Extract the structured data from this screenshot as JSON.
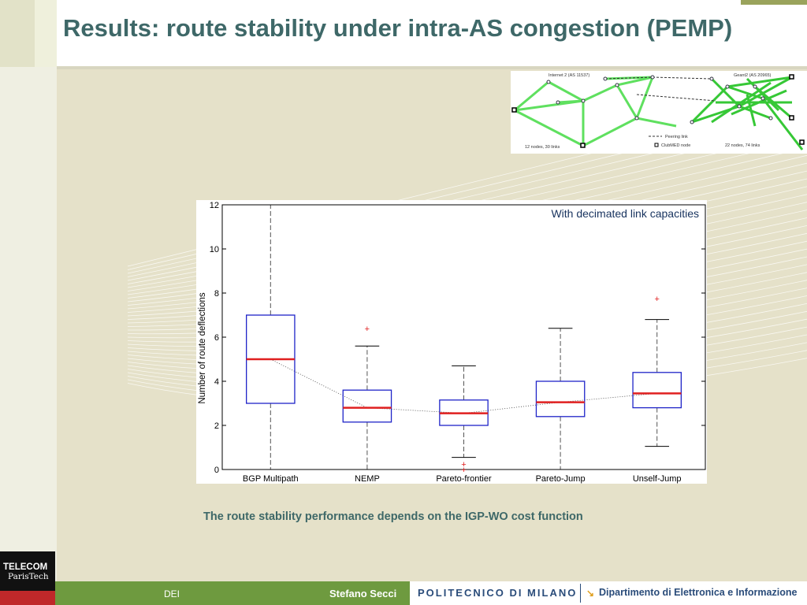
{
  "slide": {
    "title": "Results: route stability under intra-AS congestion (PEMP)",
    "caption": "The route stability performance depends on the IGP-WO cost function"
  },
  "footer": {
    "dept_short": "DEI",
    "author": "Stefano Secci",
    "university": "POLITECNICO DI MILANO",
    "department": "Dipartimento di Elettronica e Informazione",
    "logo_line1": "TELECOM",
    "logo_line2": "ParisTech"
  },
  "network_figure": {
    "left_title": "Internet 2 (AS 11537)",
    "right_title": "Geant2 (AS 20965)",
    "left_stats": "12 nodes, 30 links",
    "right_stats": "22 nodes, 74 links",
    "legend_peering": "Peering link",
    "legend_clubmed": "ClubMED node"
  },
  "chart_data": {
    "type": "box",
    "annotation": "With decimated link capacities",
    "ylabel": "Number of route deflections",
    "xlabel": "",
    "ylim": [
      0,
      12
    ],
    "yticks": [
      "0",
      "2",
      "4",
      "6",
      "8",
      "10",
      "12"
    ],
    "grid": false,
    "categories": [
      "BGP Multipath",
      "NEMP",
      "Pareto-frontier",
      "Pareto-Jump",
      "Unself-Jump"
    ],
    "boxes": [
      {
        "min": 0,
        "q1": 3.0,
        "median": 5.0,
        "q3": 7.0,
        "max": 12.0,
        "outliers": []
      },
      {
        "min": 0,
        "q1": 2.15,
        "median": 2.8,
        "q3": 3.6,
        "max": 5.6,
        "outliers": [
          6.4
        ]
      },
      {
        "min": 0.55,
        "q1": 2.0,
        "median": 2.55,
        "q3": 3.15,
        "max": 4.7,
        "outliers": [
          0.25,
          0.0
        ]
      },
      {
        "min": 0,
        "q1": 2.4,
        "median": 3.05,
        "q3": 4.0,
        "max": 6.4,
        "outliers": []
      },
      {
        "min": 1.05,
        "q1": 2.8,
        "median": 3.45,
        "q3": 4.4,
        "max": 6.8,
        "outliers": [
          7.75
        ]
      }
    ],
    "colors": {
      "box": "#1f24c8",
      "median": "#e02020",
      "whisker": "#555555",
      "outlier": "#e02020"
    }
  }
}
